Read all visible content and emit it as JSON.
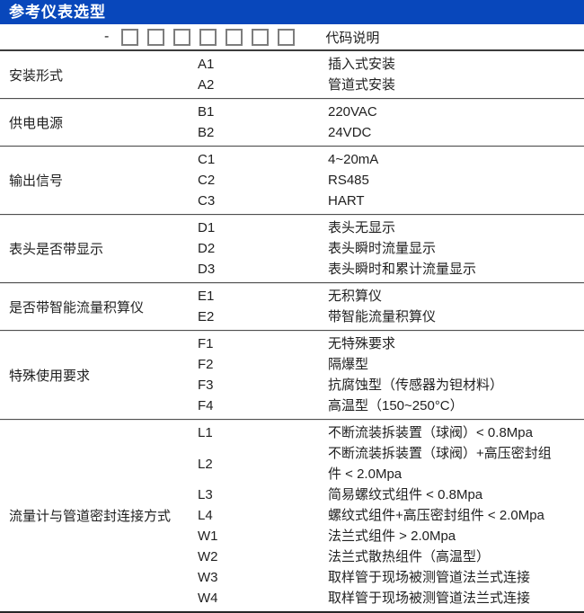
{
  "header": {
    "title": "参考仪表选型",
    "bar_color": "#0847bb"
  },
  "code_row": {
    "dash": "-",
    "box_count": 7,
    "label": "代码说明"
  },
  "sections": [
    {
      "category": "安装形式",
      "options": [
        {
          "code": "A1",
          "desc": "插入式安装"
        },
        {
          "code": "A2",
          "desc": "管道式安装"
        }
      ]
    },
    {
      "category": "供电电源",
      "options": [
        {
          "code": "B1",
          "desc": "220VAC"
        },
        {
          "code": "B2",
          "desc": "24VDC"
        }
      ]
    },
    {
      "category": "输出信号",
      "options": [
        {
          "code": "C1",
          "desc": "4~20mA"
        },
        {
          "code": "C2",
          "desc": "RS485"
        },
        {
          "code": "C3",
          "desc": "HART"
        }
      ]
    },
    {
      "category": "表头是否带显示",
      "options": [
        {
          "code": "D1",
          "desc": "表头无显示"
        },
        {
          "code": "D2",
          "desc": "表头瞬时流量显示"
        },
        {
          "code": "D3",
          "desc": "表头瞬时和累计流量显示"
        }
      ]
    },
    {
      "category": "是否带智能流量积算仪",
      "options": [
        {
          "code": "E1",
          "desc": "无积算仪"
        },
        {
          "code": "E2",
          "desc": "带智能流量积算仪"
        }
      ]
    },
    {
      "category": "特殊使用要求",
      "options": [
        {
          "code": "F1",
          "desc": "无特殊要求"
        },
        {
          "code": "F2",
          "desc": "隔爆型"
        },
        {
          "code": "F3",
          "desc": "抗腐蚀型（传感器为钽材料）"
        },
        {
          "code": "F4",
          "desc": "高温型（150~250°C）"
        }
      ]
    },
    {
      "category": "流量计与管道密封连接方式",
      "options": [
        {
          "code": "L1",
          "desc": "不断流装拆装置（球阀）< 0.8Mpa"
        },
        {
          "code": "L2",
          "desc": "不断流装拆装置（球阀）+高压密封组件 < 2.0Mpa"
        },
        {
          "code": "L3",
          "desc": "简易螺纹式组件 < 0.8Mpa"
        },
        {
          "code": "L4",
          "desc": "螺纹式组件+高压密封组件 < 2.0Mpa"
        },
        {
          "code": "W1",
          "desc": "法兰式组件 > 2.0Mpa"
        },
        {
          "code": "W2",
          "desc": "法兰式散热组件（高温型）"
        },
        {
          "code": "W3",
          "desc": "取样管于现场被测管道法兰式连接"
        },
        {
          "code": "W4",
          "desc": "取样管于现场被测管道法兰式连接"
        }
      ]
    }
  ]
}
